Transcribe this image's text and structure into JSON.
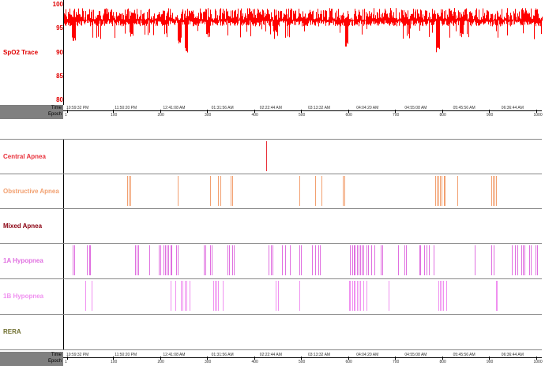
{
  "spo2": {
    "title": "SpO2 Trace",
    "y_ticks": [
      "100",
      "95",
      "90",
      "85",
      "80"
    ],
    "color": "#ff0000"
  },
  "axis": {
    "time_label": "Time",
    "epoch_label": "Epoch",
    "times": [
      "10:59:32 PM",
      "11:50:20 PM",
      "12:41:08 AM",
      "01:31:56 AM",
      "02:22:44 AM",
      "03:13:32 AM",
      "04:04:20 AM",
      "04:55:08 AM",
      "05:45:56 AM",
      "06:36:44 AM"
    ],
    "epochs": [
      "1",
      "100",
      "200",
      "300",
      "400",
      "500",
      "600",
      "700",
      "800",
      "900",
      "1000"
    ]
  },
  "rows": [
    {
      "label": "Central Apnea",
      "color": "#e8303a",
      "events": [
        0.423
      ]
    },
    {
      "label": "Obstructive Apnea",
      "color": "#f2a070",
      "events": [
        0.132,
        0.135,
        0.138,
        0.238,
        0.305,
        0.322,
        0.326,
        0.348,
        0.352,
        0.492,
        0.525,
        0.538,
        0.583,
        0.586,
        0.775,
        0.779,
        0.782,
        0.786,
        0.789,
        0.793,
        0.796,
        0.822,
        0.892,
        0.896,
        0.899,
        0.903
      ]
    },
    {
      "label": "Mixed Apnea",
      "color": "#8a0010",
      "events": []
    },
    {
      "label": "1A Hypopnea",
      "color": "#e070e0",
      "events": [
        0.018,
        0.022,
        0.048,
        0.052,
        0.055,
        0.148,
        0.152,
        0.155,
        0.178,
        0.198,
        0.202,
        0.208,
        0.212,
        0.215,
        0.218,
        0.222,
        0.225,
        0.235,
        0.238,
        0.292,
        0.295,
        0.305,
        0.308,
        0.342,
        0.345,
        0.352,
        0.355,
        0.428,
        0.432,
        0.435,
        0.455,
        0.462,
        0.472,
        0.492,
        0.495,
        0.518,
        0.525,
        0.532,
        0.535,
        0.598,
        0.602,
        0.605,
        0.608,
        0.612,
        0.615,
        0.618,
        0.622,
        0.625,
        0.632,
        0.635,
        0.642,
        0.648,
        0.662,
        0.665,
        0.698,
        0.712,
        0.715,
        0.742,
        0.745,
        0.752,
        0.758,
        0.762,
        0.772,
        0.858,
        0.892,
        0.898,
        0.935,
        0.942,
        0.948,
        0.955,
        0.958,
        0.962,
        0.972,
        0.975,
        0.985,
        0.988
      ]
    },
    {
      "label": "1B Hypopnea",
      "color": "#f090f0",
      "events": [
        0.045,
        0.058,
        0.222,
        0.232,
        0.245,
        0.248,
        0.252,
        0.255,
        0.262,
        0.312,
        0.315,
        0.318,
        0.322,
        0.332,
        0.442,
        0.448,
        0.492,
        0.595,
        0.598,
        0.602,
        0.605,
        0.608,
        0.612,
        0.615,
        0.618,
        0.625,
        0.632,
        0.678,
        0.782,
        0.785,
        0.788,
        0.792,
        0.798,
        0.902,
        0.905
      ]
    },
    {
      "label": "RERA",
      "color": "#707030",
      "events": []
    }
  ]
}
